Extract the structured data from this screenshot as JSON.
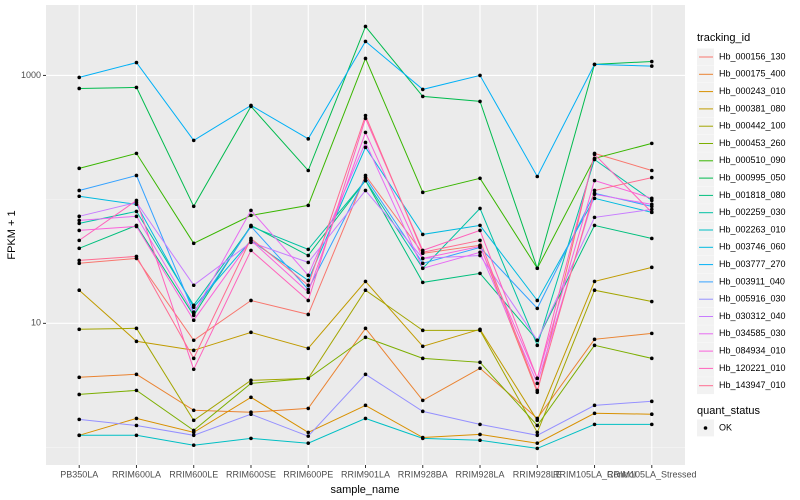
{
  "chart_data": {
    "type": "line",
    "x_label": "sample_name",
    "y_label": "FPKM + 1",
    "legend_title": "tracking_id",
    "log_y": true,
    "grid": true,
    "legend_position": "right",
    "categories": [
      "PB350LA",
      "RRIM600LA",
      "RRIM600LE",
      "RRIM600SE",
      "RRIM600PE",
      "RRIM901LA",
      "RRIM928BA",
      "RRIM928LA",
      "RRIM928LE",
      "RRIM105LA_Control",
      "RRIM105LA_Stressed"
    ],
    "ylim": [
      0.72,
      3700
    ],
    "yticks": [
      10,
      1000
    ],
    "minor_yticks": [
      1,
      100
    ],
    "point_legend": {
      "title": "quant_status",
      "labels": [
        "OK"
      ],
      "color": "#000000"
    },
    "series": [
      {
        "name": "Hb_000156_130",
        "color": "#F8766D",
        "values": [
          30.5,
          33.4,
          7.3,
          15.3,
          11.8,
          156,
          36.7,
          42.6,
          2.78,
          235,
          171
        ]
      },
      {
        "name": "Hb_000175_400",
        "color": "#EA8331",
        "values": [
          3.67,
          3.88,
          1.99,
          1.92,
          2.06,
          9.12,
          2.39,
          4.34,
          1.71,
          7.43,
          8.3
        ]
      },
      {
        "name": "Hb_000243_010",
        "color": "#D89000",
        "values": [
          1.25,
          1.71,
          1.32,
          2.53,
          1.32,
          2.18,
          1.2,
          1.27,
          1.08,
          1.88,
          1.85
        ]
      },
      {
        "name": "Hb_000381_080",
        "color": "#C09B00",
        "values": [
          18.5,
          7.16,
          6.06,
          8.46,
          6.29,
          21.8,
          6.53,
          8.95,
          1.65,
          21.8,
          28.3
        ]
      },
      {
        "name": "Hb_000442_100",
        "color": "#A3A500",
        "values": [
          8.95,
          9.12,
          1.65,
          3.47,
          3.6,
          18.5,
          8.78,
          8.78,
          1.32,
          18.5,
          15.0
        ]
      },
      {
        "name": "Hb_000453_260",
        "color": "#7CAE00",
        "values": [
          2.67,
          2.88,
          1.37,
          3.28,
          3.6,
          7.71,
          5.22,
          4.85,
          1.5,
          6.65,
          5.22
        ]
      },
      {
        "name": "Hb_000510_090",
        "color": "#39B600",
        "values": [
          178,
          235,
          44.2,
          74.3,
          89.5,
          1371,
          114,
          148,
          27.8,
          214,
          283
        ]
      },
      {
        "name": "Hb_000995_050",
        "color": "#00BB4E",
        "values": [
          785,
          800,
          88,
          563,
          171,
          2484,
          677,
          617,
          27.8,
          1227,
          1295
        ]
      },
      {
        "name": "Hb_001818_080",
        "color": "#00BF7D",
        "values": [
          40.3,
          61.7,
          11.6,
          61.7,
          35.3,
          142,
          21.4,
          25.3,
          7.3,
          61.7,
          48.4
        ]
      },
      {
        "name": "Hb_002259_030",
        "color": "#00C1A3",
        "values": [
          64,
          80,
          14,
          60.5,
          39.5,
          142,
          27.8,
          84.6,
          6.65,
          210,
          98.2
        ]
      },
      {
        "name": "Hb_002263_010",
        "color": "#00BFC4",
        "values": [
          1.25,
          1.25,
          1.04,
          1.18,
          1.08,
          1.71,
          1.18,
          1.14,
          0.98,
          1.53,
          1.53
        ]
      },
      {
        "name": "Hb_003746_060",
        "color": "#00BAE0",
        "values": [
          106,
          91.2,
          13.5,
          46.7,
          22.2,
          263,
          52.2,
          61.7,
          15.3,
          102,
          78.6
        ]
      },
      {
        "name": "Hb_003777_270",
        "color": "#00B0F6",
        "values": [
          964,
          1270,
          299,
          573,
          308,
          1880,
          771,
          1000,
          153,
          1227,
          1190
        ]
      },
      {
        "name": "Hb_003911_040",
        "color": "#35A2FF",
        "values": [
          118,
          156,
          12.3,
          60.5,
          18.8,
          150,
          30.5,
          41,
          13.2,
          112,
          87.8
        ]
      },
      {
        "name": "Hb_005916_030",
        "color": "#9590FF",
        "values": [
          1.68,
          1.5,
          1.25,
          1.85,
          1.23,
          3.88,
          1.95,
          1.53,
          1.25,
          2.18,
          2.35
        ]
      },
      {
        "name": "Hb_030312_040",
        "color": "#C77CFF",
        "values": [
          73,
          94.6,
          20.3,
          45,
          31,
          118,
          33.4,
          35.3,
          7.3,
          71.6,
          83
        ]
      },
      {
        "name": "Hb_034585_030",
        "color": "#E76BF3",
        "values": [
          67.7,
          73,
          12,
          81.5,
          24.4,
          288,
          27.8,
          37.4,
          3.28,
          110,
          91.2
        ]
      },
      {
        "name": "Hb_084934_010",
        "color": "#FA62DB",
        "values": [
          56.2,
          60.5,
          10.6,
          46.7,
          17.8,
          347,
          33.4,
          41.8,
          3.6,
          142,
          102
        ]
      },
      {
        "name": "Hb_120221_010",
        "color": "#FF62BC",
        "values": [
          46.7,
          98.2,
          4.26,
          38.8,
          15.3,
          450,
          38.8,
          56.2,
          3.6,
          231,
          78.6
        ]
      },
      {
        "name": "Hb_143947_010",
        "color": "#FF6C91",
        "values": [
          32.2,
          34.7,
          5.22,
          48.4,
          20.3,
          475,
          37.4,
          46.7,
          2.88,
          118,
          150
        ]
      }
    ]
  }
}
